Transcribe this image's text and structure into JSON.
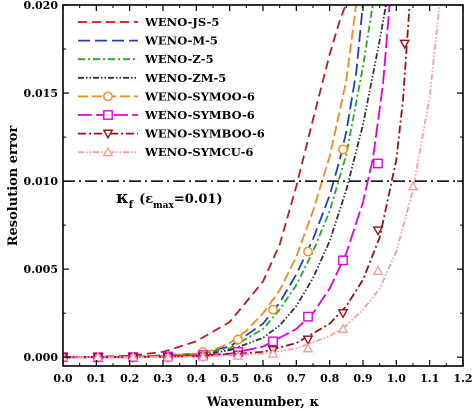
{
  "chart_data": {
    "type": "line",
    "xlabel": "Wavenumber, κ",
    "ylabel": "Resolution error",
    "xlim": [
      0.0,
      1.2
    ],
    "ylim": [
      -0.0005,
      0.02
    ],
    "xticks": [
      "0.0",
      "0.1",
      "0.2",
      "0.3",
      "0.4",
      "0.5",
      "0.6",
      "0.7",
      "0.8",
      "0.9",
      "1.0",
      "1.1",
      "1.2"
    ],
    "yticks": [
      "0.000",
      "0.005",
      "0.010",
      "0.015",
      "0.020"
    ],
    "legend_placement": "top-left",
    "reference_line": {
      "y": 0.01,
      "style": "dash-dot",
      "color": "#000000"
    },
    "annotation": {
      "main": "κ",
      "sub1": "f",
      "paren_open": "(ε",
      "sub2": "max",
      "rest": "=0.01)"
    },
    "series": [
      {
        "name": "WENO-JS-5",
        "color": "#c0181e",
        "dash": "9,5",
        "marker": "none",
        "x": [
          0.0,
          0.1,
          0.2,
          0.3,
          0.4,
          0.5,
          0.6,
          0.65,
          0.7,
          0.75,
          0.8,
          0.83,
          0.85
        ],
        "y": [
          0.0,
          2e-05,
          8e-05,
          0.0003,
          0.0009,
          0.002,
          0.0043,
          0.0064,
          0.0097,
          0.0135,
          0.0172,
          0.0191,
          0.0201
        ]
      },
      {
        "name": "WENO-M-5",
        "color": "#1f3fbf",
        "dash": "12,5",
        "marker": "none",
        "x": [
          0.0,
          0.2,
          0.4,
          0.5,
          0.6,
          0.65,
          0.7,
          0.75,
          0.8,
          0.83,
          0.85,
          0.88,
          0.9
        ],
        "y": [
          0.0,
          1e-05,
          0.0002,
          0.0006,
          0.0019,
          0.0031,
          0.0047,
          0.0067,
          0.0092,
          0.0112,
          0.0128,
          0.0162,
          0.0201
        ]
      },
      {
        "name": "WENO-Z-5",
        "color": "#22aa22",
        "dash": "7,3,2,3",
        "marker": "none",
        "x": [
          0.0,
          0.2,
          0.4,
          0.5,
          0.6,
          0.65,
          0.7,
          0.75,
          0.8,
          0.85,
          0.9,
          0.93
        ],
        "y": [
          0.0,
          1e-05,
          0.0002,
          0.0005,
          0.0016,
          0.0027,
          0.0041,
          0.006,
          0.0083,
          0.0115,
          0.0165,
          0.0201
        ]
      },
      {
        "name": "WENO-ZM-5",
        "color": "#333333",
        "dash": "6,2,1.5,2,1.5,2",
        "marker": "none",
        "x": [
          0.0,
          0.2,
          0.4,
          0.5,
          0.6,
          0.65,
          0.7,
          0.75,
          0.8,
          0.85,
          0.9,
          0.95,
          0.97
        ],
        "y": [
          0.0,
          1e-05,
          0.0001,
          0.0004,
          0.0011,
          0.0018,
          0.0029,
          0.0045,
          0.0066,
          0.0095,
          0.0132,
          0.018,
          0.0201
        ]
      },
      {
        "name": "WENO-SYMOO-6",
        "color": "#f08a1c",
        "dash": "10,4",
        "marker": "circle",
        "x": [
          0.0,
          0.1,
          0.2,
          0.3,
          0.4,
          0.45,
          0.5,
          0.55,
          0.6,
          0.65,
          0.7,
          0.75,
          0.8,
          0.85,
          0.88
        ],
        "y": [
          0.0,
          0.0,
          1e-05,
          5e-05,
          0.0002,
          0.0004,
          0.0008,
          0.0015,
          0.0025,
          0.0038,
          0.0057,
          0.0083,
          0.0114,
          0.0157,
          0.0201
        ],
        "marker_x": [
          0.0,
          0.105,
          0.21,
          0.315,
          0.42,
          0.525,
          0.63,
          0.735,
          0.84
        ],
        "marker_y": [
          0.0,
          0.0,
          1e-05,
          8e-05,
          0.0003,
          0.001,
          0.0027,
          0.006,
          0.0118
        ]
      },
      {
        "name": "WENO-SYMBO-6",
        "color": "#e000e0",
        "dash": "14,4",
        "marker": "square",
        "x": [
          0.0,
          0.2,
          0.4,
          0.5,
          0.6,
          0.7,
          0.75,
          0.8,
          0.85,
          0.9,
          0.93,
          0.96,
          0.98
        ],
        "y": [
          0.0,
          0.0,
          0.0001,
          0.0002,
          0.0006,
          0.0016,
          0.0025,
          0.0039,
          0.0059,
          0.0088,
          0.0113,
          0.0155,
          0.0201
        ],
        "marker_x": [
          0.0,
          0.105,
          0.21,
          0.315,
          0.42,
          0.525,
          0.63,
          0.735,
          0.84,
          0.945
        ],
        "marker_y": [
          0.0,
          0.0,
          1e-05,
          3e-05,
          0.00012,
          0.0003,
          0.0009,
          0.0023,
          0.0055,
          0.011
        ]
      },
      {
        "name": "WENO-SYMBOO-6",
        "color": "#9a1010",
        "dash": "8,3,2,3",
        "marker": "triangle-down",
        "x": [
          0.0,
          0.2,
          0.4,
          0.6,
          0.7,
          0.8,
          0.85,
          0.9,
          0.95,
          1.0,
          1.02,
          1.04
        ],
        "y": [
          0.0,
          0.0,
          5e-05,
          0.0003,
          0.0008,
          0.0019,
          0.0029,
          0.0044,
          0.0068,
          0.0112,
          0.0146,
          0.0201
        ],
        "marker_x": [
          0.0,
          0.105,
          0.21,
          0.315,
          0.42,
          0.525,
          0.63,
          0.735,
          0.84,
          0.945,
          1.025
        ],
        "marker_y": [
          0.0,
          0.0,
          0.0,
          1e-05,
          5e-05,
          0.00015,
          0.0004,
          0.001,
          0.0025,
          0.0072,
          0.0178
        ]
      },
      {
        "name": "WENO-SYMCU-6",
        "color": "#f4a0a0",
        "dash": "6,2,1.5,2,1.5,2",
        "marker": "triangle-up",
        "x": [
          0.0,
          0.2,
          0.4,
          0.6,
          0.7,
          0.8,
          0.85,
          0.9,
          0.95,
          1.0,
          1.05,
          1.1,
          1.13
        ],
        "y": [
          0.0,
          0.0,
          3e-05,
          0.0002,
          0.0005,
          0.0012,
          0.0018,
          0.0027,
          0.0039,
          0.006,
          0.0095,
          0.0148,
          0.0201
        ],
        "marker_x": [
          0.0,
          0.105,
          0.21,
          0.315,
          0.42,
          0.525,
          0.63,
          0.735,
          0.84,
          0.945,
          1.05
        ],
        "marker_y": [
          0.0,
          0.0,
          0.0,
          0.0,
          2e-05,
          8e-05,
          0.0002,
          0.0005,
          0.0016,
          0.0049,
          0.0097
        ]
      }
    ]
  }
}
